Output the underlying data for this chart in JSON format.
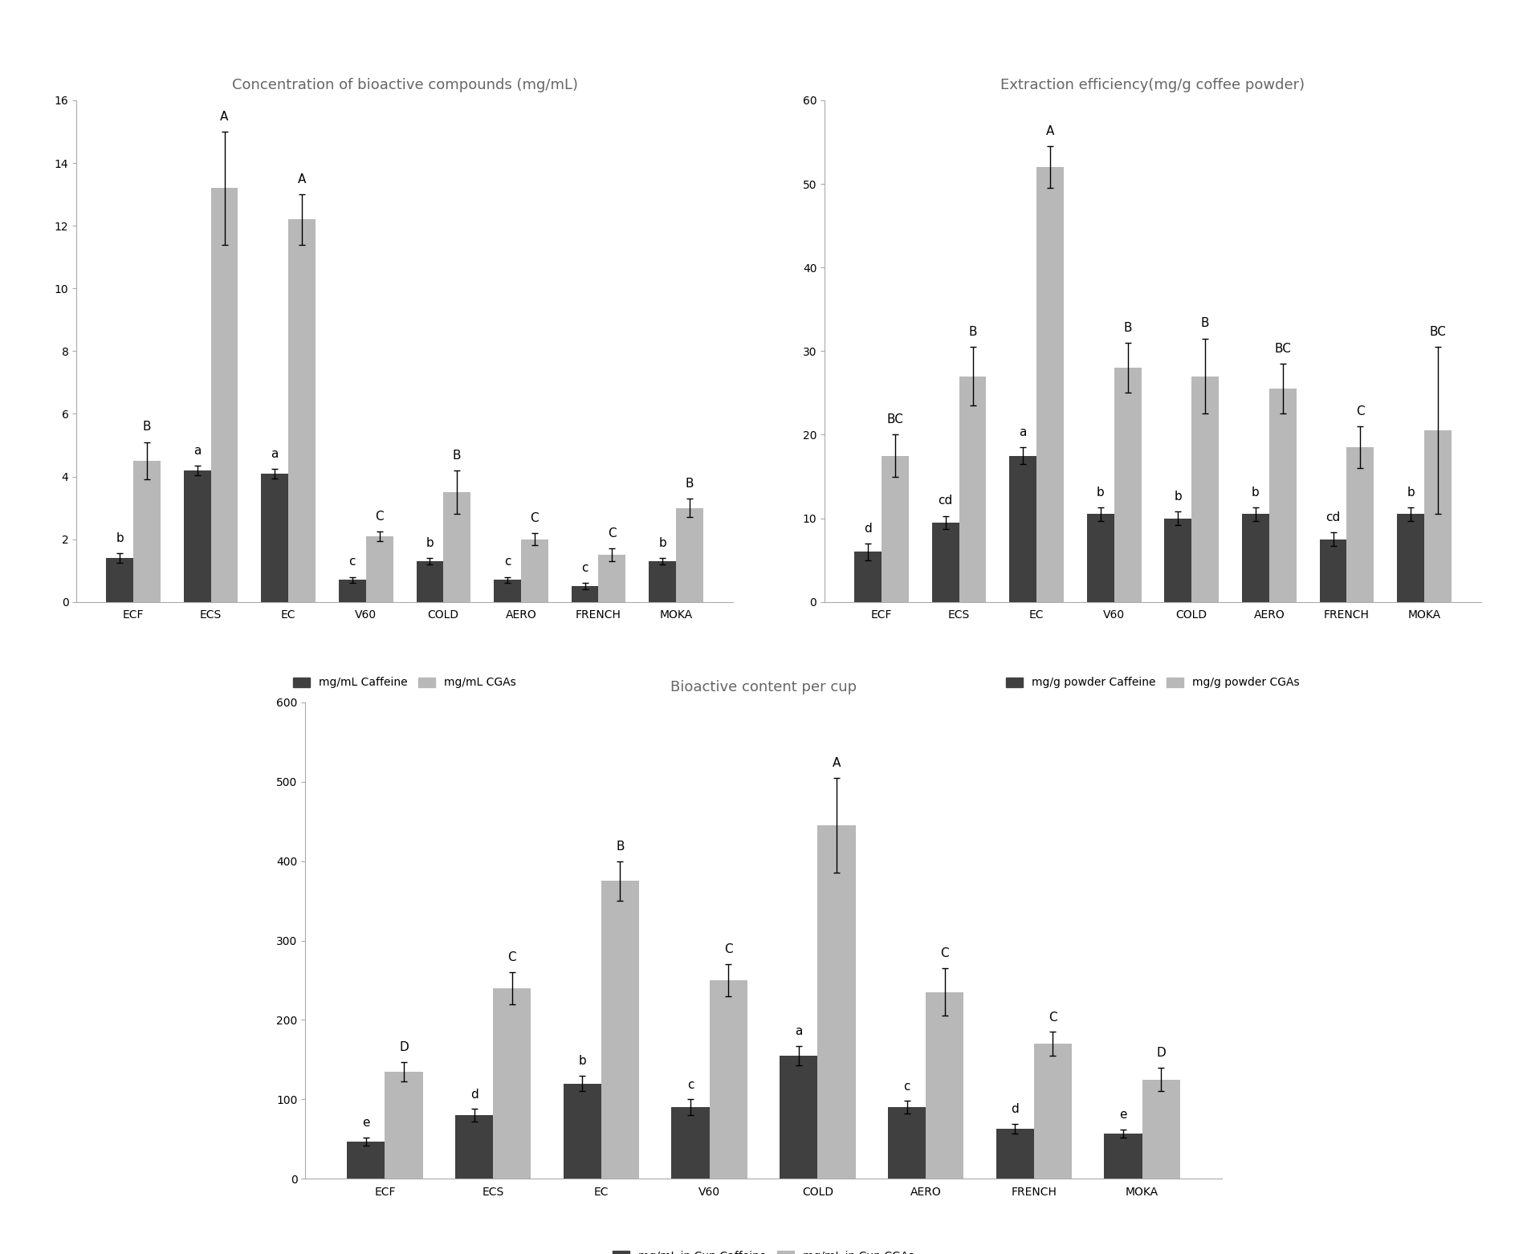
{
  "categories": [
    "ECF",
    "ECS",
    "EC",
    "V60",
    "COLD",
    "AERO",
    "FRENCH",
    "MOKA"
  ],
  "chart1": {
    "title": "Concentration of bioactive compounds (mg/mL)",
    "caffeine_values": [
      1.4,
      4.2,
      4.1,
      0.7,
      1.3,
      0.7,
      0.5,
      1.3
    ],
    "cgas_values": [
      4.5,
      13.2,
      12.2,
      2.1,
      3.5,
      2.0,
      1.5,
      3.0
    ],
    "caffeine_errors": [
      0.15,
      0.15,
      0.15,
      0.1,
      0.1,
      0.1,
      0.1,
      0.1
    ],
    "cgas_errors": [
      0.6,
      1.8,
      0.8,
      0.15,
      0.7,
      0.2,
      0.2,
      0.3
    ],
    "caffeine_labels": [
      "b",
      "a",
      "a",
      "c",
      "b",
      "c",
      "c",
      "b"
    ],
    "cgas_labels": [
      "B",
      "A",
      "A",
      "C",
      "B",
      "C",
      "C",
      "B"
    ],
    "ylim": [
      0,
      16
    ],
    "yticks": [
      0,
      2,
      4,
      6,
      8,
      10,
      12,
      14,
      16
    ],
    "legend_caffeine": "mg/mL Caffeine",
    "legend_cgas": "mg/mL CGAs"
  },
  "chart2": {
    "title": "Extraction efficiency(mg/g coffee powder)",
    "caffeine_values": [
      6.0,
      9.5,
      17.5,
      10.5,
      10.0,
      10.5,
      7.5,
      10.5
    ],
    "cgas_values": [
      17.5,
      27.0,
      52.0,
      28.0,
      27.0,
      25.5,
      18.5,
      20.5
    ],
    "caffeine_errors": [
      1.0,
      0.8,
      1.0,
      0.8,
      0.8,
      0.8,
      0.8,
      0.8
    ],
    "cgas_errors": [
      2.5,
      3.5,
      2.5,
      3.0,
      4.5,
      3.0,
      2.5,
      10.0
    ],
    "caffeine_labels": [
      "d",
      "cd",
      "a",
      "b",
      "b",
      "b",
      "cd",
      "b"
    ],
    "cgas_labels": [
      "BC",
      "B",
      "A",
      "B",
      "B",
      "BC",
      "C",
      "BC"
    ],
    "ylim": [
      0,
      60
    ],
    "yticks": [
      0,
      10,
      20,
      30,
      40,
      50,
      60
    ],
    "legend_caffeine": "mg/g powder Caffeine",
    "legend_cgas": "mg/g powder CGAs"
  },
  "chart3": {
    "title": "Bioactive content per cup",
    "caffeine_values": [
      47,
      80,
      120,
      90,
      155,
      90,
      63,
      57
    ],
    "cgas_values": [
      135,
      240,
      375,
      250,
      445,
      235,
      170,
      125
    ],
    "caffeine_errors": [
      5,
      8,
      10,
      10,
      12,
      8,
      6,
      5
    ],
    "cgas_errors": [
      12,
      20,
      25,
      20,
      60,
      30,
      15,
      15
    ],
    "caffeine_labels": [
      "e",
      "d",
      "b",
      "c",
      "a",
      "c",
      "d",
      "e"
    ],
    "cgas_labels": [
      "D",
      "C",
      "B",
      "C",
      "A",
      "C",
      "C",
      "D"
    ],
    "ylim": [
      0,
      600
    ],
    "yticks": [
      0,
      100,
      200,
      300,
      400,
      500,
      600
    ],
    "legend_caffeine": "mg/mL in Cup Caffeine",
    "legend_cgas": "mg/mL in Cup CGAs"
  },
  "bar_width": 0.35,
  "caffeine_color": "#404040",
  "cgas_color": "#b8b8b8",
  "label_fontsize": 10,
  "title_fontsize": 13,
  "tick_fontsize": 10,
  "legend_fontsize": 10,
  "annotation_fontsize": 11
}
